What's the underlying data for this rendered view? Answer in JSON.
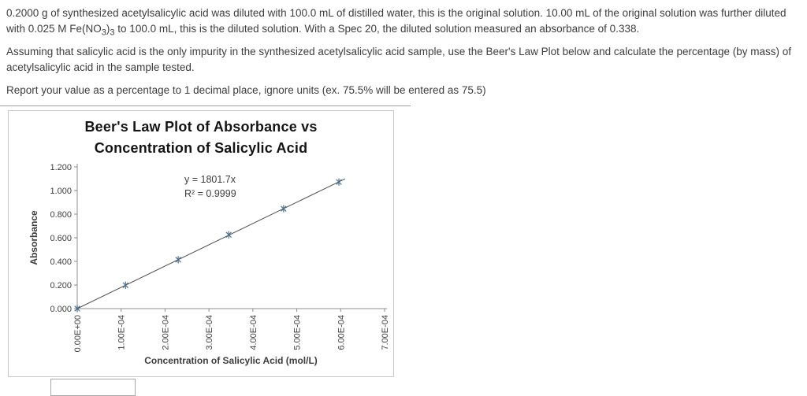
{
  "question": {
    "p1_a": "0.2000 g of synthesized acetylsalicylic acid was diluted with 100.0 mL of distilled water, this is the original solution. 10.00 mL of the original solution was further diluted with 0.025 M Fe(NO",
    "p1_sub1": "3",
    "p1_b": ")",
    "p1_sub2": "3",
    "p1_c": " to 100.0 mL, this is the diluted solution. With a Spec 20, the diluted solution measured an absorbance of 0.338.",
    "p2": "Assuming that salicylic acid is the only impurity in the synthesized acetylsalicylic acid sample, use the Beer's Law Plot below and calculate the percentage (by mass) of acetylsalicylic acid in the sample tested.",
    "p3": "Report your value as a percentage to 1 decimal place, ignore units (ex. 75.5% will be entered as 75.5)"
  },
  "answer_input": {
    "value": "",
    "placeholder": ""
  },
  "chart_data": {
    "type": "scatter",
    "title": "Beer's Law Plot of Absorbance vs Concentration of Salicylic Acid",
    "title_lines": [
      "Beer's Law Plot of Absorbance vs",
      "Concentration of Salicylic Acid"
    ],
    "xlabel": "Concentration of Salicylic Acid (mol/L)",
    "ylabel": "Absorbance",
    "x": [
      0.0,
      0.00011,
      0.00023,
      0.000345,
      0.00047,
      0.000596
    ],
    "y": [
      0.0,
      0.198,
      0.414,
      0.625,
      0.846,
      1.072
    ],
    "equation": "y = 1801.7x",
    "r_squared": "R² = 0.9999",
    "trendline": {
      "slope": 1801.7,
      "x_start": 0,
      "x_end": 0.00061
    },
    "xlim": [
      0,
      0.0007
    ],
    "ylim": [
      0,
      1.2
    ],
    "x_tick_values": [
      0,
      0.0001,
      0.0002,
      0.0003,
      0.0004,
      0.0005,
      0.0006,
      0.0007
    ],
    "x_ticks": [
      "0.00E+00",
      "1.00E-04",
      "2.00E-04",
      "3.00E-04",
      "4.00E-04",
      "5.00E-04",
      "6.00E-04",
      "7.00E-04"
    ],
    "y_tick_values": [
      0,
      0.2,
      0.4,
      0.6,
      0.8,
      1.0,
      1.2
    ],
    "y_ticks": [
      "0.000",
      "0.200",
      "0.400",
      "0.600",
      "0.800",
      "1.000",
      "1.200"
    ],
    "grid": false,
    "legend": false,
    "marker_color": "#4a708e",
    "line_color": "#4d4d4d",
    "axis_color": "#8c8c8c"
  }
}
